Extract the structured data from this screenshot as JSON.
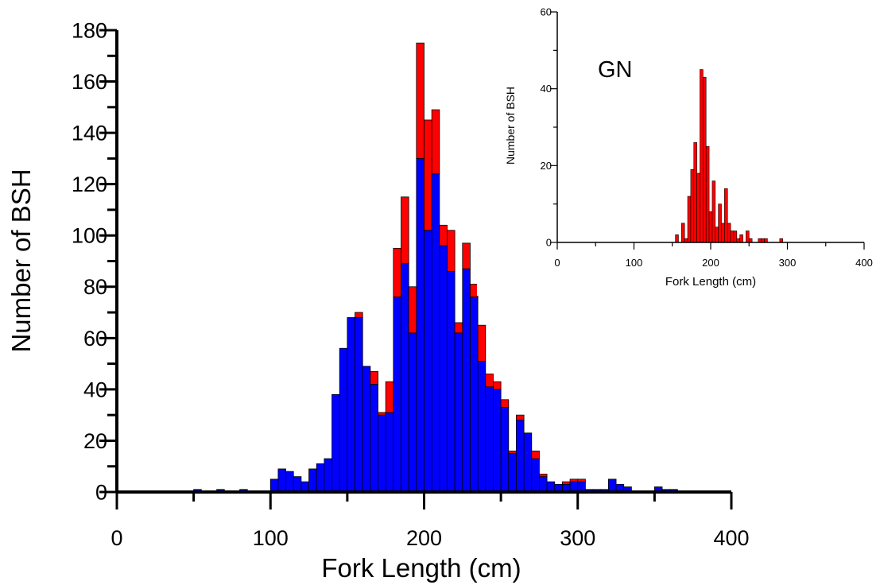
{
  "chart_data": [
    {
      "type": "bar",
      "stacked": true,
      "xlabel": "Fork Length (cm)",
      "ylabel": "Number of BSH",
      "xlim": [
        0,
        400
      ],
      "ylim": [
        0,
        180
      ],
      "x_ticks": [
        "0",
        "100",
        "200",
        "300",
        "400"
      ],
      "y_ticks": [
        "0",
        "20",
        "40",
        "60",
        "80",
        "100",
        "120",
        "140",
        "160",
        "180"
      ],
      "bin_width": 5,
      "x": [
        45,
        50,
        55,
        60,
        65,
        70,
        75,
        80,
        85,
        90,
        95,
        100,
        105,
        110,
        115,
        120,
        125,
        130,
        135,
        140,
        145,
        150,
        155,
        160,
        165,
        170,
        175,
        180,
        185,
        190,
        195,
        200,
        205,
        210,
        215,
        220,
        225,
        230,
        235,
        240,
        245,
        250,
        255,
        260,
        265,
        270,
        275,
        280,
        285,
        290,
        295,
        300,
        305,
        310,
        315,
        320,
        325,
        330,
        335,
        340,
        345,
        350,
        355,
        360,
        365,
        370
      ],
      "grid": false,
      "series": [
        {
          "color": "#0000ff",
          "values": [
            0,
            1,
            0,
            0,
            1,
            0,
            0,
            1,
            0,
            0,
            0,
            5,
            9,
            8,
            6,
            4,
            9,
            11,
            13,
            38,
            56,
            68,
            68,
            49,
            42,
            30,
            31,
            76,
            89,
            62,
            130,
            102,
            124,
            96,
            86,
            62,
            87,
            76,
            51,
            41,
            40,
            33,
            15,
            28,
            23,
            13,
            6,
            4,
            3,
            3,
            4,
            4,
            1,
            1,
            1,
            5,
            3,
            2,
            0,
            0,
            0,
            2,
            1,
            1,
            0,
            0
          ]
        },
        {
          "color": "#ff0000",
          "values": [
            0,
            0,
            0,
            0,
            0,
            0,
            0,
            0,
            0,
            0,
            0,
            0,
            0,
            0,
            0,
            0,
            0,
            0,
            0,
            0,
            0,
            0,
            2,
            0,
            5,
            1,
            12,
            19,
            26,
            18,
            45,
            43,
            25,
            8,
            16,
            4,
            10,
            5,
            14,
            5,
            3,
            3,
            1,
            2,
            0,
            3,
            1,
            0,
            0,
            1,
            1,
            1,
            0,
            0,
            0,
            0,
            0,
            0,
            0,
            0,
            0,
            0,
            0,
            0,
            0,
            0
          ]
        }
      ]
    },
    {
      "type": "bar",
      "title": "GN",
      "xlabel": "Fork Length (cm)",
      "ylabel": "Number of BSH",
      "xlim": [
        0,
        400
      ],
      "ylim": [
        0,
        60
      ],
      "x_ticks": [
        "0",
        "100",
        "200",
        "300",
        "400"
      ],
      "y_ticks": [
        "0",
        "20",
        "40",
        "60"
      ],
      "bin_width": 4,
      "x": [
        150,
        154,
        158,
        162,
        166,
        170,
        174,
        178,
        182,
        186,
        190,
        194,
        198,
        202,
        206,
        210,
        214,
        218,
        222,
        226,
        230,
        234,
        238,
        242,
        246,
        250,
        254,
        258,
        262,
        266,
        270,
        274,
        278,
        282,
        286,
        290
      ],
      "series": [
        {
          "color": "#ff0000",
          "values": [
            0,
            2,
            0,
            5,
            1,
            12,
            19,
            26,
            18,
            45,
            43,
            25,
            8,
            16,
            4,
            10,
            5,
            14,
            5,
            3,
            3,
            1,
            2,
            0,
            3,
            1,
            0,
            0,
            1,
            1,
            1,
            0,
            0,
            0,
            0,
            1
          ]
        }
      ]
    }
  ]
}
